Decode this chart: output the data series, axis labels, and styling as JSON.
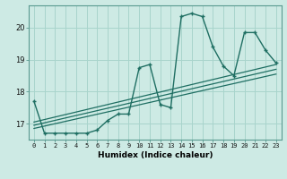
{
  "title": "",
  "xlabel": "Humidex (Indice chaleur)",
  "bg_color": "#cdeae4",
  "grid_color": "#a8d4cc",
  "line_color": "#1e6e62",
  "xlim": [
    -0.5,
    23.5
  ],
  "ylim": [
    16.5,
    20.7
  ],
  "yticks": [
    17,
    18,
    19,
    20
  ],
  "xticks": [
    0,
    1,
    2,
    3,
    4,
    5,
    6,
    7,
    8,
    9,
    10,
    11,
    12,
    13,
    14,
    15,
    16,
    17,
    18,
    19,
    20,
    21,
    22,
    23
  ],
  "series1_x": [
    0,
    1,
    2,
    3,
    4,
    5,
    6,
    7,
    8,
    9,
    10,
    11,
    12,
    13,
    14,
    15,
    16,
    17,
    18,
    19,
    20,
    21,
    22,
    23
  ],
  "series1_y": [
    17.7,
    16.7,
    16.7,
    16.7,
    16.7,
    16.7,
    16.8,
    17.1,
    17.3,
    17.3,
    18.75,
    18.85,
    17.6,
    17.5,
    20.35,
    20.45,
    20.35,
    19.4,
    18.8,
    18.5,
    19.85,
    19.85,
    19.3,
    18.9
  ],
  "trend1_x": [
    0,
    23
  ],
  "trend1_y": [
    16.85,
    18.55
  ],
  "trend2_x": [
    0,
    23
  ],
  "trend2_y": [
    16.95,
    18.7
  ],
  "trend3_x": [
    0,
    23
  ],
  "trend3_y": [
    17.05,
    18.85
  ]
}
